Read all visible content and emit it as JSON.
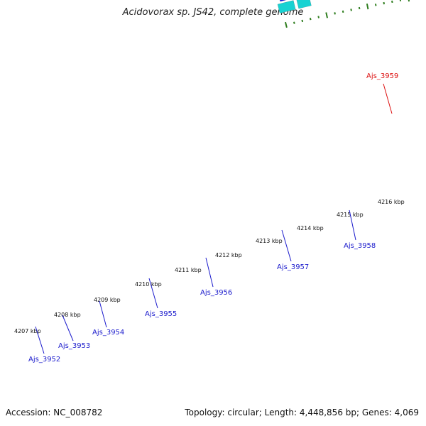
{
  "title": "Acidovorax sp. JS42, complete genome",
  "footer": {
    "accession": "Accession: NC_008782",
    "summary": "Topology: circular; Length: 4,448,856 bp; Genes: 4,069"
  },
  "colors": {
    "backbone": "#888888",
    "tick": "#2e7d1e",
    "label_blue": "#1a1acc",
    "label_red": "#dd1111",
    "gene_blue": "#1414e0",
    "gene_cyan": "#19d2d2",
    "gene_steel": "#5a8cc8",
    "gene_red": "#ee1111",
    "gene_pink": "#f4a0a0",
    "gene_olive": "#7a9a2a"
  },
  "scale_labels": [
    "4207 kbp",
    "4208 kbp",
    "4209 kbp",
    "4210 kbp",
    "4211 kbp",
    "4212 kbp",
    "4213 kbp",
    "4214 kbp",
    "4215 kbp",
    "4216 kbp"
  ],
  "gene_labels": [
    {
      "text": "Ajs_3952",
      "color": "blue"
    },
    {
      "text": "Ajs_3953",
      "color": "blue"
    },
    {
      "text": "Ajs_3954",
      "color": "blue"
    },
    {
      "text": "Ajs_3955",
      "color": "blue"
    },
    {
      "text": "Ajs_3956",
      "color": "blue"
    },
    {
      "text": "Ajs_3957",
      "color": "blue"
    },
    {
      "text": "Ajs_3958",
      "color": "blue"
    },
    {
      "text": "Ajs_3959",
      "color": "red"
    }
  ]
}
